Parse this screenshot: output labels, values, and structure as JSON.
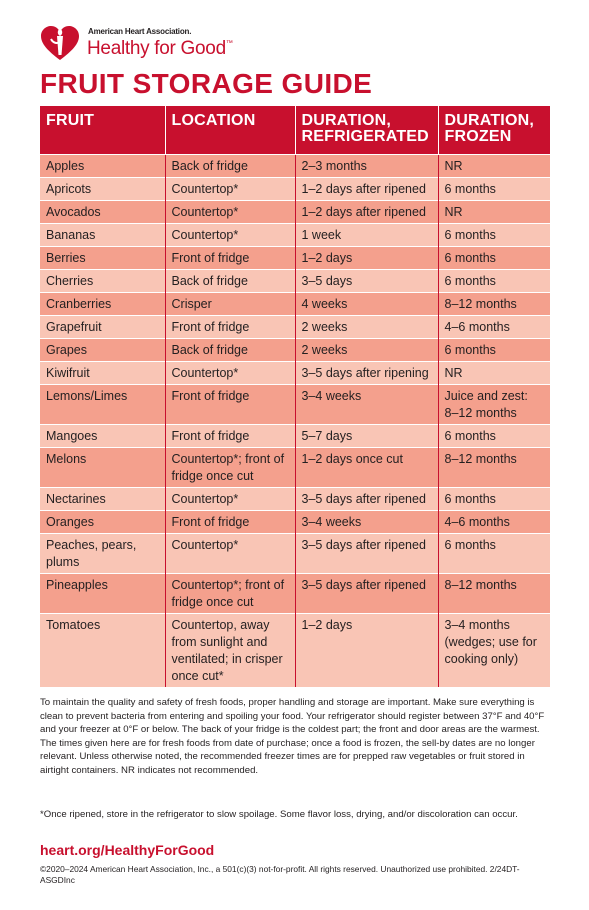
{
  "header": {
    "org_name": "American Heart Association.",
    "brand": "Healthy for Good",
    "brand_mark": "™",
    "logo_icon": "heart-torch-icon"
  },
  "title": "FRUIT STORAGE GUIDE",
  "table": {
    "headers": {
      "fruit": "FRUIT",
      "location": "LOCATION",
      "refrigerated_1": "DURATION,",
      "refrigerated_2": "REFRIGERATED",
      "frozen_1": "DURATION,",
      "frozen_2": "FROZEN"
    },
    "rows": [
      {
        "fruit": "Apples",
        "location": "Back of fridge",
        "refrigerated": "2–3 months",
        "frozen": "NR"
      },
      {
        "fruit": "Apricots",
        "location": "Countertop*",
        "refrigerated": "1–2 days after ripened",
        "frozen": "6 months"
      },
      {
        "fruit": "Avocados",
        "location": "Countertop*",
        "refrigerated": "1–2 days after ripened",
        "frozen": "NR"
      },
      {
        "fruit": "Bananas",
        "location": "Countertop*",
        "refrigerated": "1 week",
        "frozen": "6 months"
      },
      {
        "fruit": "Berries",
        "location": "Front of fridge",
        "refrigerated": "1–2 days",
        "frozen": "6 months"
      },
      {
        "fruit": "Cherries",
        "location": "Back of fridge",
        "refrigerated": "3–5 days",
        "frozen": "6 months"
      },
      {
        "fruit": "Cranberries",
        "location": "Crisper",
        "refrigerated": "4 weeks",
        "frozen": "8–12 months"
      },
      {
        "fruit": "Grapefruit",
        "location": "Front of fridge",
        "refrigerated": "2 weeks",
        "frozen": "4–6 months"
      },
      {
        "fruit": "Grapes",
        "location": "Back of fridge",
        "refrigerated": "2 weeks",
        "frozen": "6 months"
      },
      {
        "fruit": "Kiwifruit",
        "location": "Countertop*",
        "refrigerated": "3–5 days after ripening",
        "frozen": "NR"
      },
      {
        "fruit": "Lemons/Limes",
        "location": "Front of fridge",
        "refrigerated": "3–4 weeks",
        "frozen": "Juice and zest: 8–12 months"
      },
      {
        "fruit": "Mangoes",
        "location": "Front of fridge",
        "refrigerated": "5–7 days",
        "frozen": "6 months"
      },
      {
        "fruit": "Melons",
        "location": "Countertop*; front of fridge once cut",
        "refrigerated": "1–2 days once cut",
        "frozen": "8–12 months"
      },
      {
        "fruit": "Nectarines",
        "location": "Countertop*",
        "refrigerated": "3–5 days after ripened",
        "frozen": "6 months"
      },
      {
        "fruit": "Oranges",
        "location": "Front of fridge",
        "refrigerated": "3–4 weeks",
        "frozen": "4–6 months"
      },
      {
        "fruit": "Peaches, pears, plums",
        "location": "Countertop*",
        "refrigerated": "3–5 days after ripened",
        "frozen": "6 months"
      },
      {
        "fruit": "Pineapples",
        "location": "Countertop*; front of fridge once cut",
        "refrigerated": "3–5 days after ripened",
        "frozen": "8–12 months"
      },
      {
        "fruit": "Tomatoes",
        "location": "Countertop, away from sunlight and ventilated; in crisper once cut*",
        "refrigerated": "1–2 days",
        "frozen": "3–4 months (wedges; use for cooking only)"
      }
    ]
  },
  "note": "To maintain the quality and safety of fresh foods, proper handling and storage are important. Make sure everything is clean to prevent bacteria from entering and spoiling your food. Your refrigerator should register between 37°F and 40°F and your freezer at 0°F or below. The back of your fridge is the coldest part; the front and door areas are the warmest. The times given here are for fresh foods from date of purchase; once a food is frozen, the sell-by dates are no longer relevant. Unless otherwise noted, the recommended freezer times are for prepped raw vegetables or fruit stored in airtight containers. NR indicates not recommended.",
  "footnote": "*Once ripened, store in the refrigerator to slow spoilage. Some flavor loss, drying, and/or discoloration can occur.",
  "url": "heart.org/HealthyForGood",
  "copyright": "©2020–2024 American Heart Association, Inc., a 501(c)(3) not-for-profit. All rights reserved. Unauthorized use prohibited.  2/24DT-ASGDInc",
  "colors": {
    "brand_red": "#c8102e",
    "row_dark": "#f4a08d",
    "row_light": "#f9c5b5"
  }
}
